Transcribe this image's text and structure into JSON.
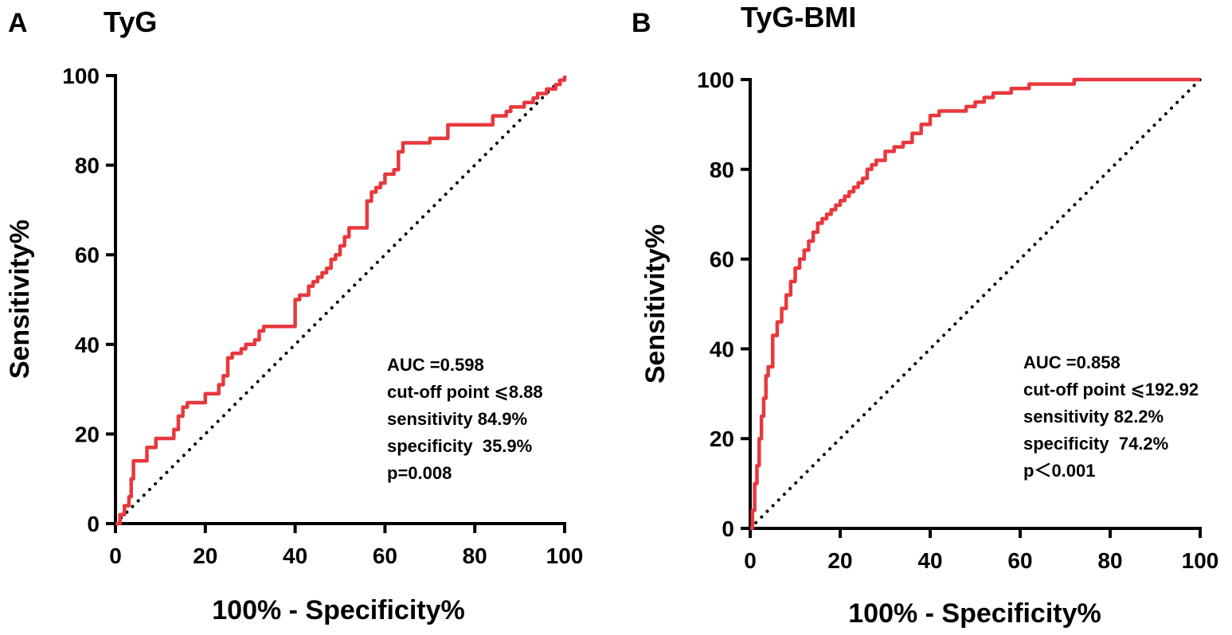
{
  "chart_data": [
    {
      "type": "line",
      "panel": "A",
      "title": "TyG",
      "xlabel": "100% - Specificity%",
      "ylabel": "Sensitivity%",
      "xlim": [
        0,
        100
      ],
      "ylim": [
        0,
        100
      ],
      "xticks": [
        "0",
        "20",
        "40",
        "60",
        "80",
        "100"
      ],
      "yticks": [
        "0",
        "20",
        "40",
        "60",
        "80",
        "100"
      ],
      "reference_line": "diagonal dotted",
      "series": [
        {
          "name": "TyG ROC",
          "color": "#e8383d",
          "x": [
            0,
            1,
            2,
            3,
            3.5,
            4,
            6,
            7,
            9,
            11,
            13,
            14,
            15,
            16,
            20,
            22,
            23,
            24,
            25,
            26,
            28,
            29,
            31,
            32,
            33,
            35,
            37,
            39,
            40,
            41,
            42,
            43,
            44,
            45,
            46,
            47,
            48,
            49,
            50,
            51,
            52,
            53,
            54,
            55,
            56,
            57,
            58,
            59,
            60,
            61,
            62,
            63,
            64,
            66,
            70,
            74,
            76,
            82,
            84,
            87,
            88,
            90,
            91,
            93,
            94,
            96,
            98,
            99,
            100
          ],
          "y": [
            0,
            2,
            4,
            6,
            10,
            14,
            14,
            17,
            19,
            19,
            21,
            24,
            26,
            27,
            29,
            29,
            31,
            33,
            37,
            38,
            39,
            40,
            41,
            43,
            44,
            44,
            44,
            44,
            50,
            51,
            51,
            53,
            54,
            55,
            56,
            57,
            59,
            60,
            62,
            64,
            66,
            66,
            66,
            66,
            72,
            74,
            75,
            76,
            78,
            78,
            79,
            83,
            85,
            85,
            86,
            89,
            89,
            89,
            91,
            92,
            93,
            93,
            94,
            95,
            96,
            97,
            98,
            99,
            100
          ]
        }
      ],
      "annotations": [
        "AUC =0.598",
        "cut-off point ⩽8.88",
        "sensitivity 84.9%",
        "specificity  35.9%",
        "p=0.008"
      ]
    },
    {
      "type": "line",
      "panel": "B",
      "title": "TyG-BMI",
      "xlabel": "100% - Specificity%",
      "ylabel": "Sensitivity%",
      "xlim": [
        0,
        100
      ],
      "ylim": [
        0,
        100
      ],
      "xticks": [
        "0",
        "20",
        "40",
        "60",
        "80",
        "100"
      ],
      "yticks": [
        "0",
        "20",
        "40",
        "60",
        "80",
        "100"
      ],
      "reference_line": "diagonal dotted",
      "series": [
        {
          "name": "TyG-BMI ROC",
          "color": "#e8383d",
          "x": [
            0,
            0.5,
            1,
            1.5,
            2,
            2.5,
            3,
            3.5,
            4,
            5,
            6,
            7,
            8,
            9,
            10,
            11,
            12,
            13,
            14,
            15,
            16,
            17,
            18,
            19,
            20,
            21,
            22,
            23,
            24,
            25,
            26,
            27,
            28,
            30,
            32,
            34,
            36,
            38,
            40,
            42,
            44,
            46,
            48,
            50,
            52,
            54,
            56,
            58,
            60,
            62,
            64,
            66,
            68,
            70,
            72,
            75,
            80,
            85,
            90,
            95,
            100
          ],
          "y": [
            0,
            4,
            10,
            14,
            20,
            25,
            29,
            34,
            36,
            43,
            46,
            49,
            52,
            55,
            58,
            60,
            62,
            64,
            66,
            68,
            69,
            70,
            71,
            72,
            73,
            74,
            75,
            76,
            77,
            78,
            80,
            81,
            82,
            84,
            85,
            86,
            88,
            90,
            92,
            93,
            93,
            93,
            94,
            95,
            96,
            97,
            97,
            98,
            98,
            99,
            99,
            99,
            99,
            99,
            100,
            100,
            100,
            100,
            100,
            100,
            100
          ]
        }
      ],
      "annotations": [
        "AUC =0.858",
        "cut-off point ⩽192.92",
        "sensitivity 82.2%",
        "specificity  74.2%",
        "p＜0.001"
      ]
    }
  ]
}
